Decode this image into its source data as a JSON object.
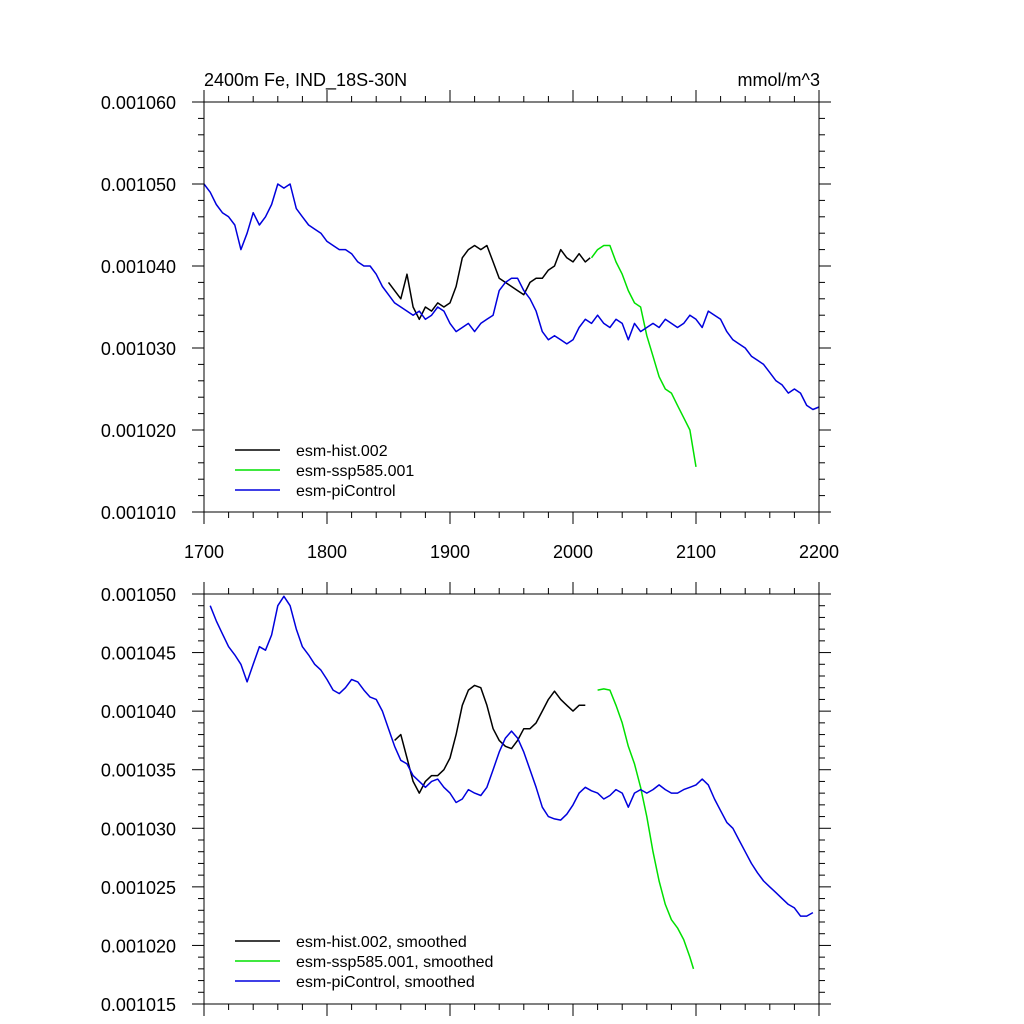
{
  "colors": {
    "hist": "#000000",
    "ssp": "#00e000",
    "pi": "#0000dd"
  },
  "chart_data": [
    {
      "type": "line",
      "title": "2400m Fe, IND_18S-30N",
      "units": "mmol/m^3",
      "xlim": [
        1700,
        2200
      ],
      "ylim": [
        0.00101,
        0.00106
      ],
      "xticks": [
        1700,
        1800,
        1900,
        2000,
        2100,
        2200
      ],
      "xtick_labels": [
        "1700",
        "1800",
        "1900",
        "2000",
        "2100",
        "2200"
      ],
      "yticks": [
        0.00101,
        0.00102,
        0.00103,
        0.00104,
        0.00105,
        0.00106
      ],
      "ytick_labels": [
        "0.001010",
        "0.001020",
        "0.001030",
        "0.001040",
        "0.001050",
        "0.001060"
      ],
      "legend_position": "bottom-left",
      "series": [
        {
          "name": "esm-hist.002",
          "color_key": "hist",
          "x": [
            1850,
            1855,
            1860,
            1865,
            1870,
            1875,
            1880,
            1885,
            1890,
            1895,
            1900,
            1905,
            1910,
            1915,
            1920,
            1925,
            1930,
            1935,
            1940,
            1945,
            1950,
            1955,
            1960,
            1965,
            1970,
            1975,
            1980,
            1985,
            1990,
            1995,
            2000,
            2005,
            2010,
            2014
          ],
          "y": [
            0.001038,
            0.001037,
            0.001036,
            0.001039,
            0.001035,
            0.0010335,
            0.001035,
            0.0010345,
            0.0010355,
            0.001035,
            0.0010355,
            0.0010375,
            0.001041,
            0.001042,
            0.0010425,
            0.001042,
            0.0010425,
            0.0010405,
            0.0010385,
            0.001038,
            0.0010375,
            0.001037,
            0.0010365,
            0.001038,
            0.0010385,
            0.0010385,
            0.0010395,
            0.00104,
            0.001042,
            0.001041,
            0.0010405,
            0.0010415,
            0.0010405,
            0.001041
          ]
        },
        {
          "name": "esm-ssp585.001",
          "color_key": "ssp",
          "x": [
            2015,
            2020,
            2025,
            2030,
            2035,
            2040,
            2045,
            2050,
            2055,
            2060,
            2065,
            2070,
            2075,
            2080,
            2085,
            2090,
            2095,
            2100
          ],
          "y": [
            0.001041,
            0.001042,
            0.0010425,
            0.0010425,
            0.0010405,
            0.001039,
            0.001037,
            0.0010355,
            0.001035,
            0.0010315,
            0.001029,
            0.0010265,
            0.001025,
            0.0010245,
            0.001023,
            0.0010215,
            0.00102,
            0.0010155
          ]
        },
        {
          "name": "esm-piControl",
          "color_key": "pi",
          "x": [
            1700,
            1705,
            1710,
            1715,
            1720,
            1725,
            1730,
            1735,
            1740,
            1745,
            1750,
            1755,
            1760,
            1765,
            1770,
            1775,
            1780,
            1785,
            1790,
            1795,
            1800,
            1805,
            1810,
            1815,
            1820,
            1825,
            1830,
            1835,
            1840,
            1845,
            1850,
            1855,
            1860,
            1865,
            1870,
            1875,
            1880,
            1885,
            1890,
            1895,
            1900,
            1905,
            1910,
            1915,
            1920,
            1925,
            1930,
            1935,
            1940,
            1945,
            1950,
            1955,
            1960,
            1965,
            1970,
            1975,
            1980,
            1985,
            1990,
            1995,
            2000,
            2005,
            2010,
            2015,
            2020,
            2025,
            2030,
            2035,
            2040,
            2045,
            2050,
            2055,
            2060,
            2065,
            2070,
            2075,
            2080,
            2085,
            2090,
            2095,
            2100,
            2105,
            2110,
            2115,
            2120,
            2125,
            2130,
            2135,
            2140,
            2145,
            2150,
            2155,
            2160,
            2165,
            2170,
            2175,
            2180,
            2185,
            2190,
            2195,
            2200
          ],
          "y": [
            0.00105,
            0.001049,
            0.0010475,
            0.0010465,
            0.001046,
            0.001045,
            0.001042,
            0.001044,
            0.0010465,
            0.001045,
            0.001046,
            0.0010475,
            0.00105,
            0.0010495,
            0.00105,
            0.001047,
            0.001046,
            0.001045,
            0.0010445,
            0.001044,
            0.001043,
            0.0010425,
            0.001042,
            0.001042,
            0.0010415,
            0.0010405,
            0.00104,
            0.00104,
            0.001039,
            0.0010375,
            0.0010365,
            0.0010355,
            0.001035,
            0.0010345,
            0.001034,
            0.0010345,
            0.0010335,
            0.001034,
            0.001035,
            0.0010345,
            0.001033,
            0.001032,
            0.0010325,
            0.001033,
            0.001032,
            0.001033,
            0.0010335,
            0.001034,
            0.001037,
            0.001038,
            0.0010385,
            0.0010385,
            0.001037,
            0.001036,
            0.0010345,
            0.001032,
            0.001031,
            0.0010315,
            0.001031,
            0.0010305,
            0.001031,
            0.0010325,
            0.0010335,
            0.001033,
            0.001034,
            0.001033,
            0.0010325,
            0.0010335,
            0.001033,
            0.001031,
            0.001033,
            0.001032,
            0.0010325,
            0.001033,
            0.0010325,
            0.0010335,
            0.001033,
            0.0010325,
            0.001033,
            0.001034,
            0.0010335,
            0.0010325,
            0.0010345,
            0.001034,
            0.0010335,
            0.001032,
            0.001031,
            0.0010305,
            0.00103,
            0.001029,
            0.0010285,
            0.001028,
            0.001027,
            0.001026,
            0.0010255,
            0.0010245,
            0.001025,
            0.0010245,
            0.001023,
            0.0010225,
            0.0010228
          ]
        }
      ]
    },
    {
      "type": "line",
      "title": "",
      "xlim": [
        1700,
        2200
      ],
      "ylim": [
        0.001015,
        0.00105
      ],
      "xticks": [
        1700,
        1800,
        1900,
        2000,
        2100,
        2200
      ],
      "yticks": [
        0.001015,
        0.00102,
        0.001025,
        0.00103,
        0.001035,
        0.00104,
        0.001045,
        0.00105
      ],
      "ytick_labels": [
        "0.001015",
        "0.001020",
        "0.001025",
        "0.001030",
        "0.001035",
        "0.001040",
        "0.001045",
        "0.001050"
      ],
      "legend_position": "bottom-left",
      "series": [
        {
          "name": "esm-hist.002, smoothed",
          "color_key": "hist",
          "x": [
            1855,
            1860,
            1865,
            1870,
            1875,
            1880,
            1885,
            1890,
            1895,
            1900,
            1905,
            1910,
            1915,
            1920,
            1925,
            1930,
            1935,
            1940,
            1945,
            1950,
            1955,
            1960,
            1965,
            1970,
            1975,
            1980,
            1985,
            1990,
            1995,
            2000,
            2005,
            2010
          ],
          "y": [
            0.0010375,
            0.001038,
            0.001036,
            0.001034,
            0.001033,
            0.001034,
            0.0010345,
            0.0010345,
            0.001035,
            0.001036,
            0.001038,
            0.0010405,
            0.0010418,
            0.0010422,
            0.001042,
            0.0010405,
            0.0010385,
            0.0010375,
            0.001037,
            0.0010368,
            0.0010375,
            0.0010385,
            0.0010385,
            0.001039,
            0.00104,
            0.001041,
            0.0010417,
            0.001041,
            0.0010405,
            0.00104,
            0.0010405,
            0.0010405
          ]
        },
        {
          "name": "esm-ssp585.001, smoothed",
          "color_key": "ssp",
          "x": [
            2020,
            2025,
            2030,
            2035,
            2040,
            2045,
            2050,
            2055,
            2060,
            2065,
            2070,
            2075,
            2080,
            2085,
            2090,
            2095,
            2098
          ],
          "y": [
            0.0010418,
            0.0010419,
            0.0010418,
            0.0010405,
            0.001039,
            0.001037,
            0.0010355,
            0.0010335,
            0.001031,
            0.001028,
            0.0010255,
            0.0010235,
            0.0010222,
            0.0010215,
            0.0010205,
            0.001019,
            0.001018
          ]
        },
        {
          "name": "esm-piControl, smoothed",
          "color_key": "pi",
          "x": [
            1705,
            1710,
            1715,
            1720,
            1725,
            1730,
            1735,
            1740,
            1745,
            1750,
            1755,
            1760,
            1765,
            1770,
            1775,
            1780,
            1785,
            1790,
            1795,
            1800,
            1805,
            1810,
            1815,
            1820,
            1825,
            1830,
            1835,
            1840,
            1845,
            1850,
            1855,
            1860,
            1865,
            1870,
            1875,
            1880,
            1885,
            1890,
            1895,
            1900,
            1905,
            1910,
            1915,
            1920,
            1925,
            1930,
            1935,
            1940,
            1945,
            1950,
            1955,
            1960,
            1965,
            1970,
            1975,
            1980,
            1985,
            1990,
            1995,
            2000,
            2005,
            2010,
            2015,
            2020,
            2025,
            2030,
            2035,
            2040,
            2045,
            2050,
            2055,
            2060,
            2065,
            2070,
            2075,
            2080,
            2085,
            2090,
            2095,
            2100,
            2105,
            2110,
            2115,
            2120,
            2125,
            2130,
            2135,
            2140,
            2145,
            2150,
            2155,
            2160,
            2165,
            2170,
            2175,
            2180,
            2185,
            2190,
            2195
          ],
          "y": [
            0.001049,
            0.0010477,
            0.0010466,
            0.0010455,
            0.0010448,
            0.001044,
            0.0010425,
            0.001044,
            0.0010455,
            0.0010452,
            0.0010465,
            0.001049,
            0.0010498,
            0.001049,
            0.001047,
            0.0010455,
            0.0010448,
            0.001044,
            0.0010435,
            0.0010427,
            0.0010418,
            0.0010415,
            0.001042,
            0.0010427,
            0.0010425,
            0.0010418,
            0.0010412,
            0.001041,
            0.00104,
            0.0010385,
            0.001037,
            0.0010358,
            0.0010355,
            0.0010345,
            0.001034,
            0.0010335,
            0.001034,
            0.0010342,
            0.0010335,
            0.001033,
            0.0010322,
            0.0010325,
            0.0010333,
            0.001033,
            0.0010328,
            0.0010335,
            0.001035,
            0.0010365,
            0.0010377,
            0.0010383,
            0.0010377,
            0.0010365,
            0.001035,
            0.0010335,
            0.0010318,
            0.001031,
            0.0010308,
            0.0010307,
            0.0010312,
            0.001032,
            0.001033,
            0.0010335,
            0.0010332,
            0.001033,
            0.0010325,
            0.0010328,
            0.0010333,
            0.001033,
            0.0010318,
            0.001033,
            0.0010333,
            0.001033,
            0.0010333,
            0.0010337,
            0.0010333,
            0.001033,
            0.001033,
            0.0010333,
            0.0010335,
            0.0010337,
            0.0010342,
            0.0010337,
            0.0010325,
            0.0010315,
            0.0010305,
            0.00103,
            0.001029,
            0.001028,
            0.001027,
            0.0010262,
            0.0010255,
            0.001025,
            0.0010245,
            0.001024,
            0.0010235,
            0.0010232,
            0.0010225,
            0.0010225,
            0.0010228
          ]
        }
      ]
    }
  ]
}
